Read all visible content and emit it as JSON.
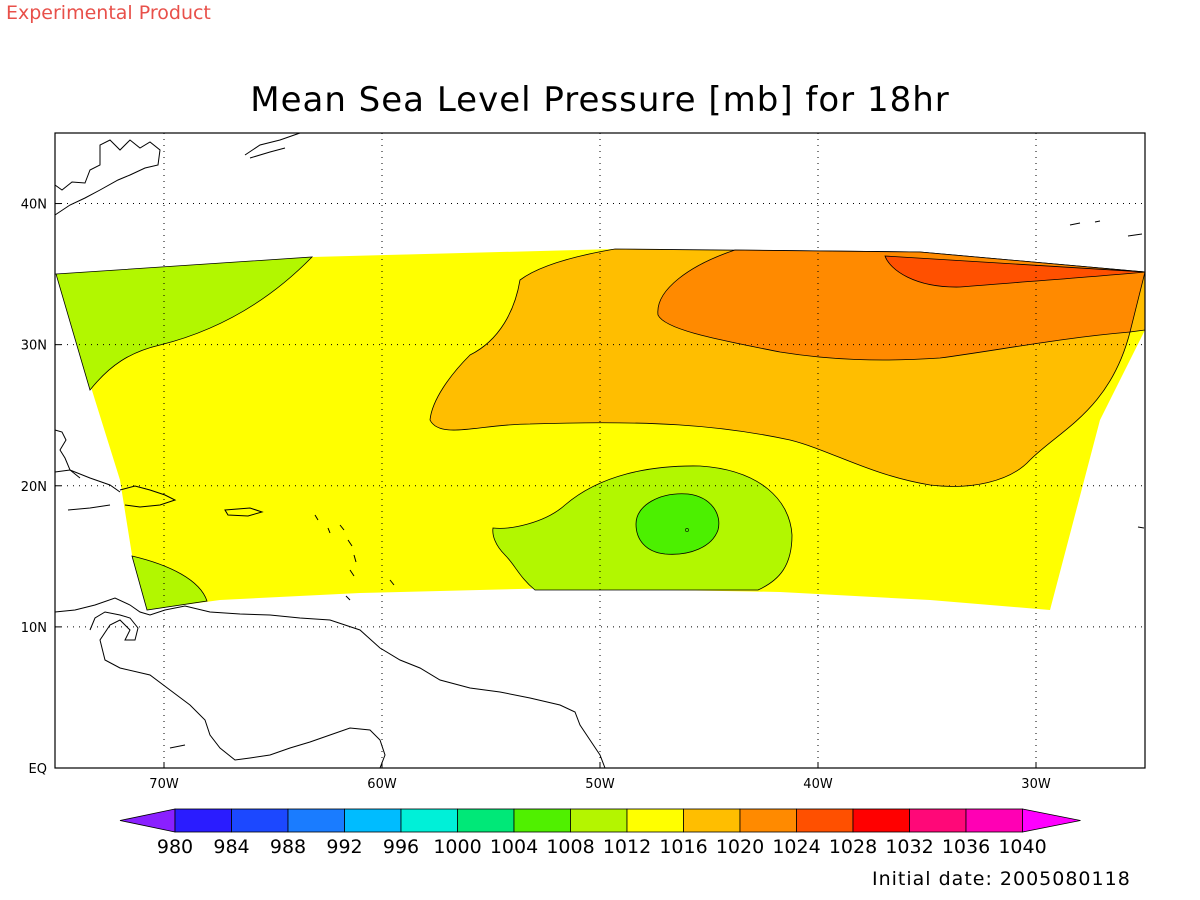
{
  "header": {
    "product_label": "Experimental Product",
    "title": "Mean Sea Level Pressure [mb] for 18hr",
    "initial_date": "Initial date: 2005080118"
  },
  "map": {
    "lon_range": [
      "75W",
      "25W"
    ],
    "lat_range": [
      "EQ",
      "45N"
    ],
    "x_ticks": [
      "70W",
      "60W",
      "50W",
      "40W",
      "30W"
    ],
    "y_ticks": [
      "EQ",
      "10N",
      "20N",
      "30N",
      "40N"
    ],
    "grid": "dotted",
    "contour_field": "mean sea level pressure",
    "field_colors": {
      "1004": "#4cf000",
      "1008": "#b2f700",
      "1012": "#ffff00",
      "1016": "#ffbe00",
      "1020": "#ff8a00",
      "1024": "#ff5000"
    }
  },
  "colorbar": {
    "levels": [
      "980",
      "984",
      "988",
      "992",
      "996",
      "1000",
      "1004",
      "1008",
      "1012",
      "1016",
      "1020",
      "1024",
      "1028",
      "1032",
      "1036",
      "1040"
    ],
    "colors": [
      "#8a20ff",
      "#2a1cff",
      "#1c48ff",
      "#1a7cff",
      "#00bcff",
      "#00f0d8",
      "#00e878",
      "#50f000",
      "#b4f500",
      "#ffff00",
      "#ffbe00",
      "#ff8a00",
      "#ff5000",
      "#ff0000",
      "#ff0878",
      "#ff00b4",
      "#ff00ff"
    ]
  }
}
